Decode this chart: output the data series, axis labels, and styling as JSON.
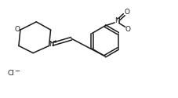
{
  "background_color": "#ffffff",
  "line_color": "#1a1a1a",
  "line_width": 1.1,
  "font_size_atom": 6.5,
  "font_size_charge": 5.0,
  "font_size_cl": 6.5,
  "xlim": [
    0,
    11
  ],
  "ylim": [
    0,
    6
  ]
}
